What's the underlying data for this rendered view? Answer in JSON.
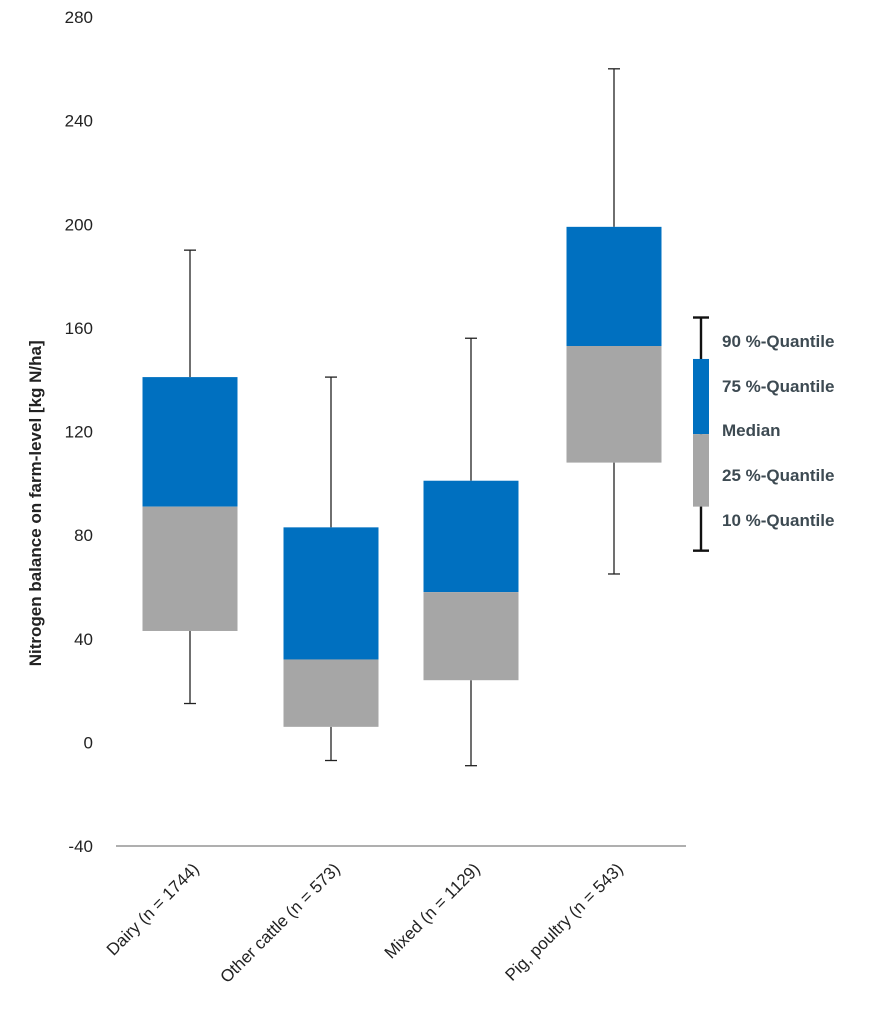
{
  "chart_data": {
    "type": "boxplot",
    "title": "",
    "ylabel": "Nitrogen balance on farm-level [kg N/ha]",
    "xlabel": "",
    "ylim": [
      -40,
      280
    ],
    "yticks": [
      -40,
      0,
      40,
      80,
      120,
      160,
      200,
      240,
      280
    ],
    "grid": false,
    "categories": [
      "Dairy (n = 1744)",
      "Other cattle (n = 573)",
      "Mixed (n = 1129)",
      "Pig, poultry (n = 543)"
    ],
    "boxes": [
      {
        "q10": 15,
        "q25": 43,
        "median": 91,
        "q75": 141,
        "q90": 190
      },
      {
        "q10": -7,
        "q25": 6,
        "median": 32,
        "q75": 83,
        "q90": 141
      },
      {
        "q10": -9,
        "q25": 24,
        "median": 58,
        "q75": 101,
        "q90": 156
      },
      {
        "q10": 65,
        "q25": 108,
        "median": 153,
        "q75": 199,
        "q90": 260
      }
    ],
    "colors": {
      "upper": "#0070c0",
      "lower": "#a6a6a6",
      "whisker": "#222222",
      "axis": "#7f7f7f"
    },
    "legend": {
      "position": "right",
      "items": [
        "90 %-Quantile",
        "75 %-Quantile",
        "Median",
        "25 %-Quantile",
        "10 %-Quantile"
      ]
    }
  }
}
